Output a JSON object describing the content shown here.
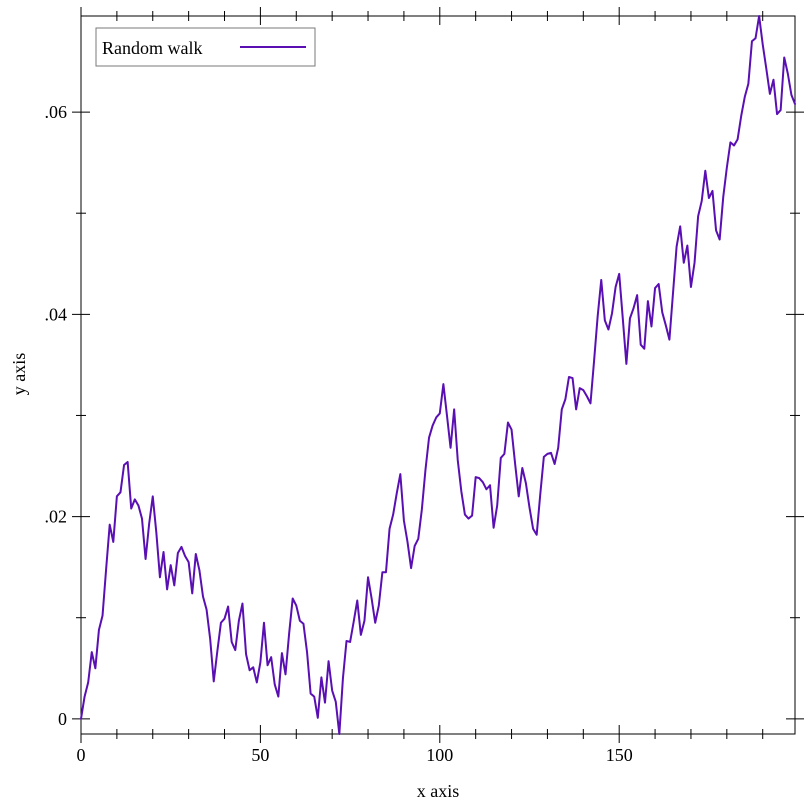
{
  "chart_data": {
    "type": "line",
    "title": "",
    "xlabel": "x axis",
    "ylabel": "y axis",
    "xlim": [
      0,
      199
    ],
    "ylim": [
      -0.0015,
      0.0695
    ],
    "x_ticks": [
      {
        "value": 0,
        "label": "0"
      },
      {
        "value": 50,
        "label": "50"
      },
      {
        "value": 100,
        "label": "100"
      },
      {
        "value": 150,
        "label": "150"
      }
    ],
    "y_ticks": [
      {
        "value": 0,
        "label": "0"
      },
      {
        "value": 0.02,
        "label": ".02"
      },
      {
        "value": 0.04,
        "label": ".04"
      },
      {
        "value": 0.06,
        "label": ".06"
      }
    ],
    "grid": false,
    "legend_position": "top-left",
    "series": [
      {
        "name": "Random walk",
        "color": "#5a0fb3",
        "x": [
          0,
          1,
          2,
          3,
          4,
          5,
          6,
          7,
          8,
          9,
          10,
          11,
          12,
          13,
          14,
          15,
          16,
          17,
          18,
          19,
          20,
          21,
          22,
          23,
          24,
          25,
          26,
          27,
          28,
          29,
          30,
          31,
          32,
          33,
          34,
          35,
          36,
          37,
          38,
          39,
          40,
          41,
          42,
          43,
          44,
          45,
          46,
          47,
          48,
          49,
          50,
          51,
          52,
          53,
          54,
          55,
          56,
          57,
          58,
          59,
          60,
          61,
          62,
          63,
          64,
          65,
          66,
          67,
          68,
          69,
          70,
          71,
          72,
          73,
          74,
          75,
          76,
          77,
          78,
          79,
          80,
          81,
          82,
          83,
          84,
          85,
          86,
          87,
          88,
          89,
          90,
          91,
          92,
          93,
          94,
          95,
          96,
          97,
          98,
          99,
          100,
          101,
          102,
          103,
          104,
          105,
          106,
          107,
          108,
          109,
          110,
          111,
          112,
          113,
          114,
          115,
          116,
          117,
          118,
          119,
          120,
          121,
          122,
          123,
          124,
          125,
          126,
          127,
          128,
          129,
          130,
          131,
          132,
          133,
          134,
          135,
          136,
          137,
          138,
          139,
          140,
          141,
          142,
          143,
          144,
          145,
          146,
          147,
          148,
          149,
          150,
          151,
          152,
          153,
          154,
          155,
          156,
          157,
          158,
          159,
          160,
          161,
          162,
          163,
          164,
          165,
          166,
          167,
          168,
          169,
          170,
          171,
          172,
          173,
          174,
          175,
          176,
          177,
          178,
          179,
          180,
          181,
          182,
          183,
          184,
          185,
          186,
          187,
          188,
          189,
          190,
          191,
          192,
          193,
          194,
          195,
          196,
          197,
          198,
          199
        ],
        "y": [
          0.0,
          0.0022,
          0.0036,
          0.0066,
          0.005,
          0.0088,
          0.0102,
          0.0148,
          0.0192,
          0.0175,
          0.022,
          0.0224,
          0.0251,
          0.0254,
          0.0208,
          0.0217,
          0.0211,
          0.0198,
          0.0158,
          0.0193,
          0.022,
          0.0184,
          0.014,
          0.0165,
          0.0128,
          0.0152,
          0.0132,
          0.0164,
          0.017,
          0.0161,
          0.0155,
          0.0124,
          0.0163,
          0.0147,
          0.0121,
          0.0108,
          0.0079,
          0.0037,
          0.0067,
          0.0095,
          0.0099,
          0.0111,
          0.0076,
          0.0068,
          0.0097,
          0.0114,
          0.0064,
          0.0048,
          0.0051,
          0.0036,
          0.0056,
          0.0095,
          0.0053,
          0.0061,
          0.0034,
          0.0022,
          0.0065,
          0.0044,
          0.0084,
          0.0119,
          0.0112,
          0.0097,
          0.0094,
          0.0066,
          0.0025,
          0.0022,
          0.0001,
          0.0041,
          0.0016,
          0.0057,
          0.0028,
          0.0017,
          -0.0015,
          0.004,
          0.0077,
          0.0076,
          0.0096,
          0.0117,
          0.0083,
          0.0097,
          0.014,
          0.0119,
          0.0095,
          0.0112,
          0.0145,
          0.0145,
          0.0188,
          0.0202,
          0.0223,
          0.0242,
          0.0196,
          0.0175,
          0.0149,
          0.0171,
          0.0178,
          0.0207,
          0.0246,
          0.0278,
          0.029,
          0.0298,
          0.0302,
          0.0331,
          0.03,
          0.0268,
          0.0306,
          0.0256,
          0.0225,
          0.0202,
          0.0198,
          0.0201,
          0.0239,
          0.0238,
          0.0234,
          0.0227,
          0.0231,
          0.0189,
          0.0211,
          0.0258,
          0.0262,
          0.0293,
          0.0286,
          0.0252,
          0.022,
          0.0248,
          0.0233,
          0.0209,
          0.0188,
          0.0182,
          0.0222,
          0.0259,
          0.0262,
          0.0263,
          0.0252,
          0.0268,
          0.0306,
          0.0316,
          0.0338,
          0.0337,
          0.0306,
          0.0327,
          0.0325,
          0.0319,
          0.0312,
          0.0354,
          0.0398,
          0.0434,
          0.0394,
          0.0385,
          0.0401,
          0.0427,
          0.044,
          0.0396,
          0.0351,
          0.0396,
          0.0406,
          0.0419,
          0.037,
          0.0366,
          0.0413,
          0.0388,
          0.0426,
          0.043,
          0.0402,
          0.0389,
          0.0375,
          0.0421,
          0.0467,
          0.0487,
          0.0451,
          0.0468,
          0.0427,
          0.0451,
          0.0497,
          0.0512,
          0.0542,
          0.0515,
          0.0522,
          0.0483,
          0.0474,
          0.0516,
          0.0545,
          0.057,
          0.0567,
          0.0573,
          0.0596,
          0.0615,
          0.0628,
          0.067,
          0.0673,
          0.0695,
          0.0667,
          0.0643,
          0.0618,
          0.0632,
          0.0598,
          0.0602,
          0.0654,
          0.0638,
          0.0617,
          0.0608
        ]
      }
    ]
  }
}
